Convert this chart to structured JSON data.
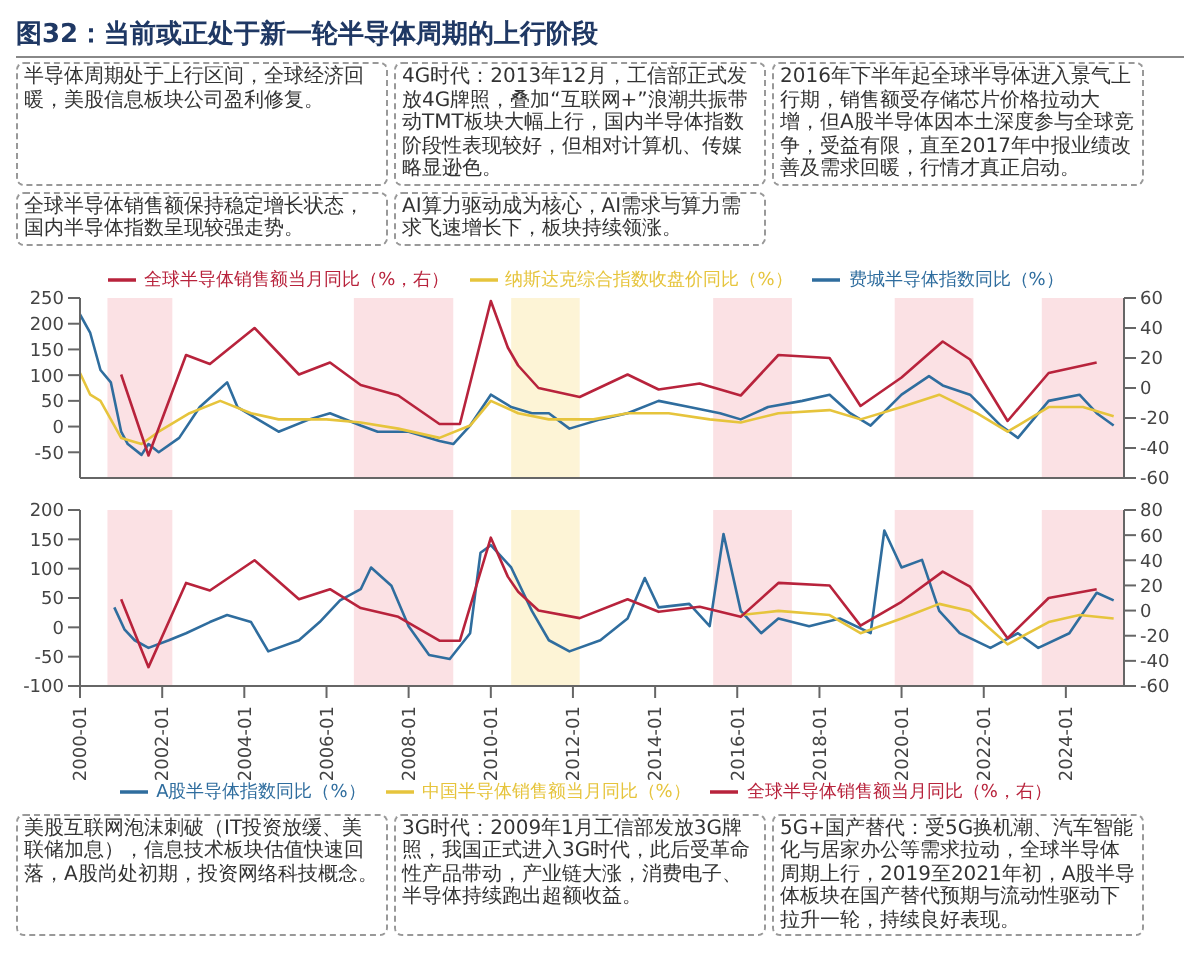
{
  "chart_data": [
    {
      "type": "line",
      "title": "图32：当前或正处于新一轮半导体周期的上行阶段",
      "legend": "top",
      "tick_labels": "y",
      "annotations": [
        "半导体周期处于上行区间，全球经济回暖，美股信息板块公司盈利修复。",
        "4G时代：2013年12月，工信部正式发放4G牌照，叠加“互联网+”浪潮共振带动TMT板块大幅上行，国内半导体指数阶段性表现较好，但相对计算机、传媒略显逊色。",
        "2016年下半年起全球半导体进入景气上行期，销售额受存储芯片价格拉动大增，但A股半导体因本土深度参与全球竞争，受益有限，直至2017年中报业绩改善及需求回暖，行情才真正启动。",
        "全球半导体销售额保持稳定增长状态，国内半导体指数呈现较强走势。",
        "AI算力驱动成为核心，AI需求与算力需求飞速增长下，板块持续领涨。"
      ],
      "xlim": [
        "2000-01",
        "2025-06"
      ],
      "ylim": [
        -100,
        250
      ],
      "yticks": [
        -50,
        0,
        50,
        100,
        150,
        200,
        250
      ],
      "y2lim": [
        -60,
        60
      ],
      "y2ticks": [
        -60,
        -40,
        -20,
        0,
        20,
        40,
        60
      ],
      "bands": [
        {
          "axis": "x",
          "from": "2000-09",
          "to": "2002-04",
          "color": "#fbe1e4"
        },
        {
          "axis": "x",
          "from": "2006-09",
          "to": "2009-02",
          "color": "#fbe1e4"
        },
        {
          "axis": "x",
          "from": "2010-07",
          "to": "2012-03",
          "color": "#fdf4d6"
        },
        {
          "axis": "x",
          "from": "2015-06",
          "to": "2017-05",
          "color": "#fbe1e4"
        },
        {
          "axis": "x",
          "from": "2019-11",
          "to": "2021-10",
          "color": "#fbe1e4"
        },
        {
          "axis": "x",
          "from": "2023-06",
          "to": "2025-06",
          "color": "#fbe1e4"
        }
      ],
      "series": [
        {
          "name": "费城半导体指数同比（%）",
          "color": "#2f6d9e",
          "x": [
            "2000-01",
            "2000-04",
            "2000-07",
            "2000-10",
            "2001-01",
            "2001-03",
            "2001-07",
            "2001-09",
            "2001-12",
            "2002-06",
            "2002-12",
            "2003-04",
            "2003-08",
            "2003-11",
            "2004-05",
            "2004-11",
            "2005-08",
            "2006-02",
            "2006-11",
            "2007-04",
            "2008-01",
            "2008-10",
            "2009-02",
            "2009-07",
            "2010-01",
            "2010-07",
            "2011-01",
            "2011-06",
            "2011-12",
            "2012-09",
            "2013-05",
            "2014-02",
            "2014-11",
            "2015-08",
            "2016-02",
            "2016-10",
            "2017-08",
            "2018-04",
            "2018-10",
            "2019-04",
            "2020-01",
            "2020-09",
            "2021-01",
            "2021-09",
            "2022-06",
            "2022-11",
            "2023-08",
            "2024-05",
            "2024-10",
            "2025-03"
          ],
          "values": [
            218,
            182,
            110,
            86,
            -10,
            -34,
            -55,
            -34,
            -50,
            -22,
            38,
            62,
            86,
            38,
            14,
            -10,
            14,
            26,
            2,
            -10,
            -10,
            -28,
            -34,
            2,
            62,
            38,
            26,
            26,
            -4,
            14,
            26,
            50,
            38,
            26,
            14,
            38,
            50,
            62,
            26,
            2,
            62,
            98,
            80,
            62,
            2,
            -22,
            50,
            62,
            26,
            2
          ]
        },
        {
          "name": "纳斯达克综合指数收盘价同比（%）",
          "color": "#e6c43c",
          "x": [
            "2000-01",
            "2000-04",
            "2000-07",
            "2001-01",
            "2001-07",
            "2001-12",
            "2002-09",
            "2003-06",
            "2004-03",
            "2004-11",
            "2006-01",
            "2006-11",
            "2007-10",
            "2008-10",
            "2009-07",
            "2010-01",
            "2010-09",
            "2011-06",
            "2012-07",
            "2013-05",
            "2014-05",
            "2015-05",
            "2016-02",
            "2017-01",
            "2018-04",
            "2019-01",
            "2020-01",
            "2020-12",
            "2021-11",
            "2022-08",
            "2023-08",
            "2024-06",
            "2025-03"
          ],
          "values": [
            104,
            62,
            50,
            -22,
            -34,
            -10,
            26,
            50,
            26,
            14,
            14,
            8,
            -4,
            -22,
            2,
            50,
            26,
            14,
            14,
            26,
            26,
            14,
            8,
            26,
            32,
            14,
            38,
            62,
            26,
            -10,
            38,
            38,
            20
          ]
        },
        {
          "name": "全球半导体销售额当月同比（%，右）",
          "color": "#b8233c",
          "axis": "y2",
          "x": [
            "2001-01",
            "2001-09",
            "2002-08",
            "2003-03",
            "2004-04",
            "2005-05",
            "2006-02",
            "2006-11",
            "2007-10",
            "2008-10",
            "2009-04",
            "2010-01",
            "2010-06",
            "2010-09",
            "2011-03",
            "2012-03",
            "2013-05",
            "2014-02",
            "2015-02",
            "2016-02",
            "2017-01",
            "2018-04",
            "2019-01",
            "2020-01",
            "2021-01",
            "2021-09",
            "2022-08",
            "2023-08",
            "2024-10"
          ],
          "values": [
            9,
            -45,
            22,
            16,
            40,
            9,
            17,
            2,
            -5,
            -24,
            -24,
            58,
            27,
            15,
            0,
            -6,
            9,
            -1,
            3,
            -5,
            22,
            20,
            -12,
            7,
            31,
            19,
            -22,
            10,
            17
          ]
        }
      ]
    },
    {
      "type": "line",
      "legend": "bottom",
      "annotations": [
        "美股互联网泡沫刺破（IT投资放缓、美联储加息），信息技术板块估值快速回落，A股尚处初期，投资网络科技概念。",
        "3G时代：2009年1月工信部发放3G牌照，我国正式进入3G时代，此后受革命性产品带动，产业链大涨，消费电子、半导体持续跑出超额收益。",
        "5G+国产替代：受5G换机潮、汽车智能化与居家办公等需求拉动，全球半导体周期上行，2019至2021年初，A股半导体板块在国产替代预期与流动性驱动下拉升一轮，持续良好表现。"
      ],
      "xlim": [
        "2000-01",
        "2025-06"
      ],
      "xticks": [
        "2000-01",
        "2002-01",
        "2004-01",
        "2006-01",
        "2008-01",
        "2010-01",
        "2012-01",
        "2014-01",
        "2016-01",
        "2018-01",
        "2020-01",
        "2022-01",
        "2024-01"
      ],
      "ylim": [
        -100,
        200
      ],
      "yticks": [
        -100,
        -50,
        0,
        50,
        100,
        150,
        200
      ],
      "y2lim": [
        -60,
        80
      ],
      "y2ticks": [
        -60,
        -40,
        -20,
        0,
        20,
        40,
        60,
        80
      ],
      "bands": [
        {
          "axis": "x",
          "from": "2000-09",
          "to": "2002-04",
          "color": "#fbe1e4"
        },
        {
          "axis": "x",
          "from": "2006-09",
          "to": "2009-02",
          "color": "#fbe1e4"
        },
        {
          "axis": "x",
          "from": "2010-07",
          "to": "2012-03",
          "color": "#fdf4d6"
        },
        {
          "axis": "x",
          "from": "2015-06",
          "to": "2017-05",
          "color": "#fbe1e4"
        },
        {
          "axis": "x",
          "from": "2019-11",
          "to": "2021-10",
          "color": "#fbe1e4"
        },
        {
          "axis": "x",
          "from": "2023-06",
          "to": "2025-06",
          "color": "#fbe1e4"
        }
      ],
      "series": [
        {
          "name": "A股半导体指数同比（%）",
          "color": "#2f6d9e",
          "x": [
            "2000-11",
            "2001-02",
            "2001-05",
            "2001-09",
            "2002-03",
            "2002-08",
            "2003-03",
            "2003-08",
            "2004-03",
            "2004-08",
            "2005-05",
            "2005-11",
            "2006-05",
            "2006-11",
            "2007-02",
            "2007-08",
            "2008-01",
            "2008-07",
            "2009-01",
            "2009-07",
            "2009-10",
            "2010-01",
            "2010-07",
            "2011-01",
            "2011-06",
            "2011-12",
            "2012-09",
            "2013-05",
            "2013-10",
            "2014-02",
            "2014-11",
            "2015-05",
            "2015-09",
            "2016-02",
            "2016-08",
            "2017-01",
            "2017-10",
            "2018-07",
            "2019-04",
            "2019-08",
            "2020-01",
            "2020-07",
            "2020-12",
            "2021-06",
            "2022-03",
            "2022-11",
            "2023-05",
            "2024-02",
            "2024-10",
            "2025-03"
          ],
          "values": [
            34,
            -4,
            -22,
            -35,
            -22,
            -10,
            9,
            21,
            9,
            -41,
            -22,
            9,
            46,
            65,
            102,
            71,
            2,
            -47,
            -54,
            -10,
            127,
            140,
            102,
            28,
            -22,
            -41,
            -22,
            15,
            84,
            34,
            40,
            2,
            159,
            28,
            -10,
            15,
            2,
            15,
            -10,
            165,
            102,
            115,
            28,
            -10,
            -35,
            -10,
            -35,
            -10,
            59,
            46
          ]
        },
        {
          "name": "中国半导体销售额当月同比（%）",
          "color": "#e6c43c",
          "x": [
            "2016-02",
            "2017-01",
            "2018-04",
            "2019-01",
            "2020-01",
            "2020-12",
            "2021-09",
            "2022-08",
            "2023-08",
            "2024-05",
            "2025-03"
          ],
          "values": [
            21,
            28,
            21,
            -10,
            15,
            40,
            28,
            -29,
            9,
            21,
            15
          ]
        },
        {
          "name": "全球半导体销售额当月同比（%，右）",
          "color": "#b8233c",
          "axis": "y2",
          "x": [
            "2001-01",
            "2001-09",
            "2002-08",
            "2003-03",
            "2004-04",
            "2005-05",
            "2006-02",
            "2006-11",
            "2007-10",
            "2008-10",
            "2009-04",
            "2010-01",
            "2010-06",
            "2010-09",
            "2011-03",
            "2012-03",
            "2013-05",
            "2014-02",
            "2015-02",
            "2016-02",
            "2017-01",
            "2018-04",
            "2019-01",
            "2020-01",
            "2021-01",
            "2021-09",
            "2022-08",
            "2023-08",
            "2024-10"
          ],
          "values": [
            9,
            -45,
            22,
            16,
            40,
            9,
            17,
            2,
            -5,
            -24,
            -24,
            58,
            27,
            15,
            0,
            -6,
            9,
            -1,
            3,
            -5,
            22,
            20,
            -12,
            7,
            31,
            19,
            -22,
            10,
            17
          ]
        }
      ]
    }
  ]
}
